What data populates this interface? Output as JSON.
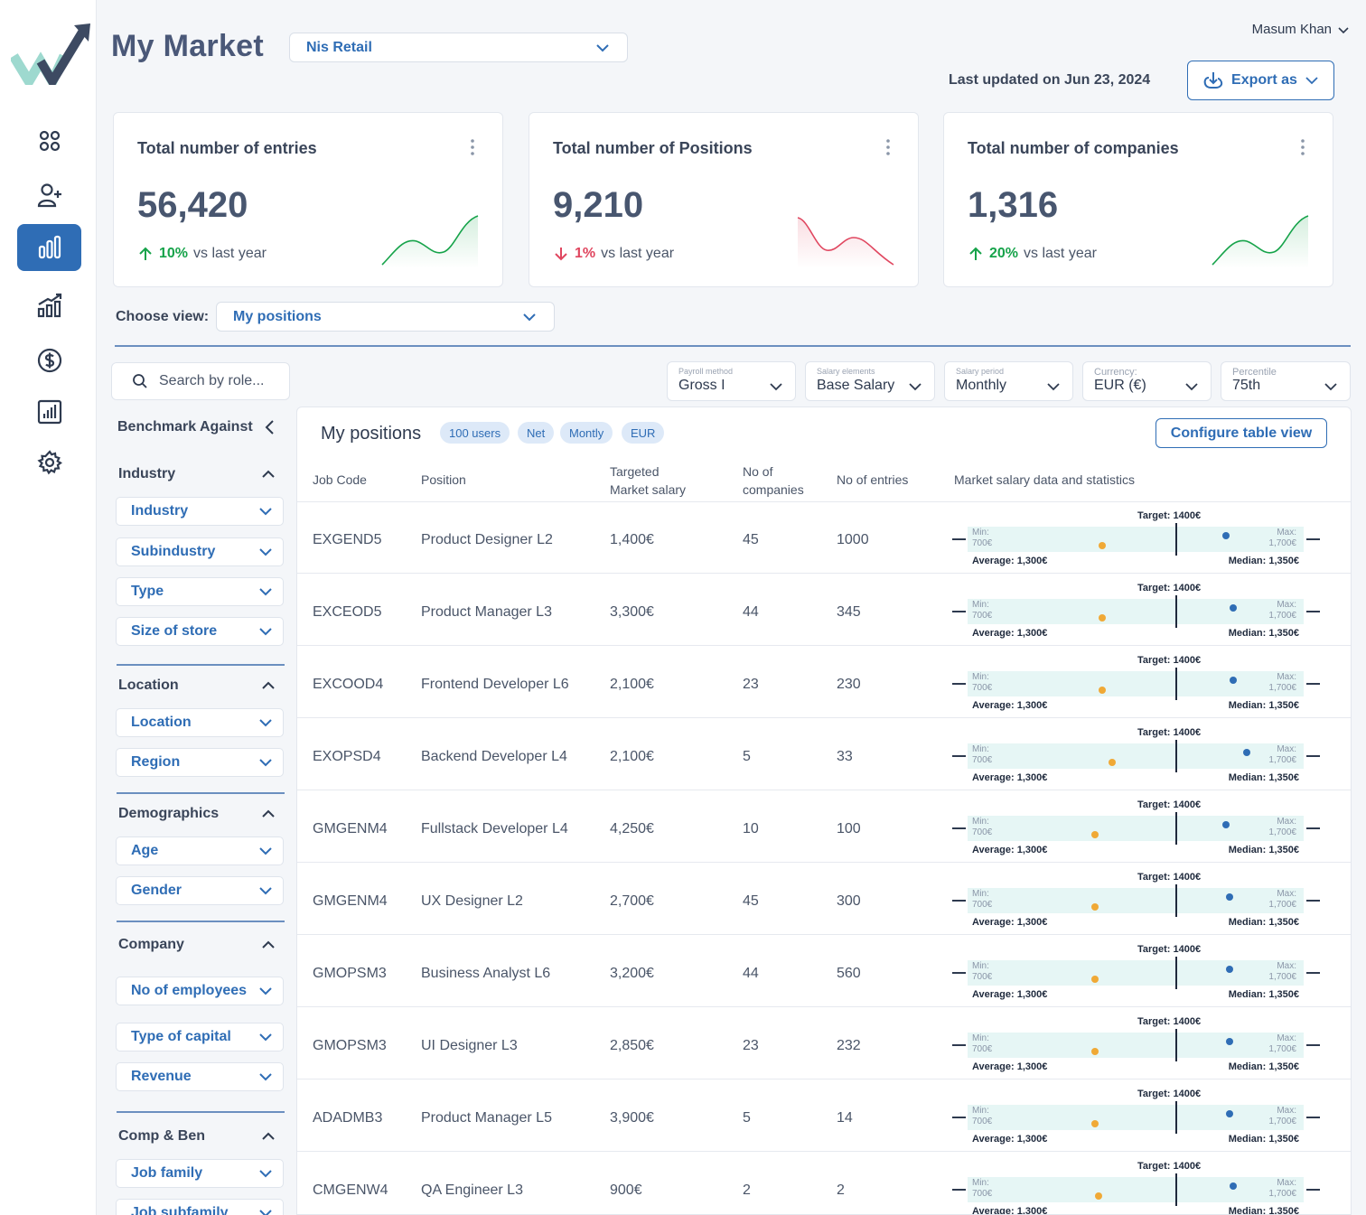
{
  "header": {
    "title": "My Market",
    "company_select": "Nis Retail",
    "user_name": "Masum Khan",
    "last_updated": "Last updated on Jun 23, 2024",
    "export_label": "Export as"
  },
  "nav": {
    "icons": [
      "dashboard-icon",
      "add-user-icon",
      "bar-chart-icon",
      "growth-chart-icon",
      "dollar-icon",
      "report-icon",
      "settings-icon"
    ],
    "active": "bar-chart-icon"
  },
  "cards": [
    {
      "title": "Total number of entries",
      "value": "56,420",
      "trend_pct": "10%",
      "trend_text": "vs last year",
      "direction": "up",
      "color": "#16a34a"
    },
    {
      "title": "Total number of Positions",
      "value": "9,210",
      "trend_pct": "1%",
      "trend_text": "vs last year",
      "direction": "down",
      "color": "#e0465f"
    },
    {
      "title": "Total number of companies",
      "value": "1,316",
      "trend_pct": "20%",
      "trend_text": "vs last year",
      "direction": "up",
      "color": "#16a34a"
    }
  ],
  "view": {
    "label": "Choose view:",
    "value": "My positions"
  },
  "search": {
    "placeholder": "Search by role..."
  },
  "filters": [
    {
      "label": "Payroll method",
      "value": "Gross I"
    },
    {
      "label": "Salary elements",
      "value": "Base Salary"
    },
    {
      "label": "Salary period",
      "value": "Monthly"
    },
    {
      "label": "Currency:",
      "value": "EUR (€)"
    },
    {
      "label": "Percentile",
      "value": "75th"
    }
  ],
  "sidebar": {
    "benchmark": "Benchmark Against",
    "sections": [
      {
        "title": "Industry",
        "items": [
          "Industry",
          "Subindustry",
          "Type",
          "Size of store"
        ]
      },
      {
        "title": "Location",
        "items": [
          "Location",
          "Region"
        ]
      },
      {
        "title": "Demographics",
        "items": [
          "Age",
          "Gender"
        ]
      },
      {
        "title": "Company",
        "items": [
          "No of employees",
          "Type of capital",
          "Revenue"
        ]
      },
      {
        "title": "Comp & Ben",
        "items": [
          "Job family",
          "Job subfamily"
        ]
      }
    ]
  },
  "table": {
    "title": "My positions",
    "chips": [
      "100 users",
      "Net",
      "Montly",
      "EUR"
    ],
    "configure_label": "Configure table view",
    "headers": [
      "Job Code",
      "Position",
      "Targeted Market salary",
      "No of companies",
      "No of entries",
      "Market salary data and statistics"
    ],
    "range_labels": {
      "target": "Target: 1400€",
      "min_label": "Min:",
      "min_value": "700€",
      "max_label": "Max:",
      "max_value": "1,700€",
      "average": "Average: 1,300€",
      "median": "Median: 1,350€"
    },
    "rows": [
      {
        "code": "EXGEND5",
        "position": "Product Designer L2",
        "salary": "1,400€",
        "companies": "45",
        "entries": "1000",
        "avg_marker": 0.4,
        "median_marker": 0.77
      },
      {
        "code": "EXCEOD5",
        "position": "Product Manager L3",
        "salary": "3,300€",
        "companies": "44",
        "entries": "345",
        "avg_marker": 0.4,
        "median_marker": 0.79
      },
      {
        "code": "EXCOOD4",
        "position": "Frontend Developer L6",
        "salary": "2,100€",
        "companies": "23",
        "entries": "230",
        "avg_marker": 0.4,
        "median_marker": 0.79
      },
      {
        "code": "EXOPSD4",
        "position": "Backend Developer L4",
        "salary": "2,100€",
        "companies": "5",
        "entries": "33",
        "avg_marker": 0.43,
        "median_marker": 0.83
      },
      {
        "code": "GMGENM4",
        "position": "Fullstack Developer L4",
        "salary": "4,250€",
        "companies": "10",
        "entries": "100",
        "avg_marker": 0.38,
        "median_marker": 0.77
      },
      {
        "code": "GMGENM4",
        "position": "UX Designer L2",
        "salary": "2,700€",
        "companies": "45",
        "entries": "300",
        "avg_marker": 0.38,
        "median_marker": 0.78
      },
      {
        "code": "GMOPSM3",
        "position": "Business Analyst L6",
        "salary": "3,200€",
        "companies": "44",
        "entries": "560",
        "avg_marker": 0.38,
        "median_marker": 0.78
      },
      {
        "code": "GMOPSM3",
        "position": "UI Designer L3",
        "salary": "2,850€",
        "companies": "23",
        "entries": "232",
        "avg_marker": 0.38,
        "median_marker": 0.78
      },
      {
        "code": "ADADMB3",
        "position": "Product Manager L5",
        "salary": "3,900€",
        "companies": "5",
        "entries": "14",
        "avg_marker": 0.38,
        "median_marker": 0.78
      },
      {
        "code": "CMGENW4",
        "position": "QA Engineer L3",
        "salary": "900€",
        "companies": "2",
        "entries": "2",
        "avg_marker": 0.39,
        "median_marker": 0.79
      }
    ]
  },
  "colors": {
    "primary": "#2f6db5",
    "up": "#16a34a",
    "down": "#e0465f",
    "avg_dot": "#f0a936",
    "median_dot": "#2f6db5"
  }
}
